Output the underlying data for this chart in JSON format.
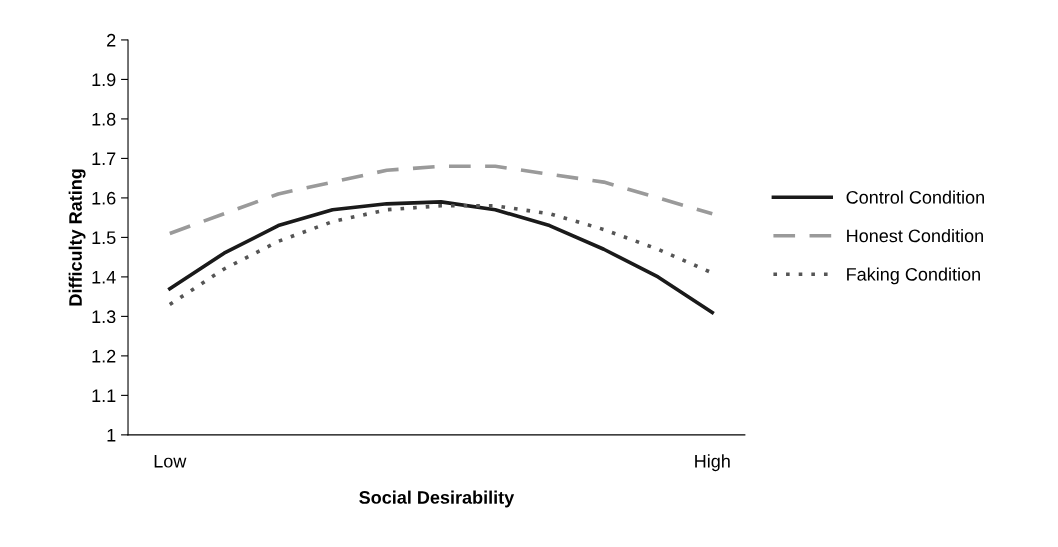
{
  "chart_data": {
    "type": "line",
    "xlabel": "Social Desirability",
    "ylabel": "Difficulty Rating",
    "categories": [
      "Low",
      null,
      null,
      null,
      null,
      null,
      null,
      null,
      null,
      null,
      "High"
    ],
    "series": [
      {
        "name": "Control Condition",
        "color": "#1a1a1a",
        "line_style": "solid",
        "values": [
          1.37,
          1.46,
          1.53,
          1.57,
          1.585,
          1.59,
          1.57,
          1.53,
          1.47,
          1.4,
          1.31
        ]
      },
      {
        "name": "Honest Condition",
        "color": "#9a9a9a",
        "line_style": "dashed",
        "values": [
          1.51,
          1.56,
          1.61,
          1.64,
          1.67,
          1.68,
          1.68,
          1.66,
          1.64,
          1.6,
          1.56
        ]
      },
      {
        "name": "Faking Condition",
        "color": "#555555",
        "line_style": "dotted",
        "values": [
          1.33,
          1.42,
          1.49,
          1.54,
          1.57,
          1.58,
          1.58,
          1.56,
          1.52,
          1.47,
          1.41
        ]
      }
    ],
    "ylim": [
      1,
      2
    ],
    "yticks": [
      1,
      {
        "value": 1.1,
        "label": "1.1"
      },
      {
        "value": 1.2,
        "label": "1.2"
      },
      {
        "value": 1.3,
        "label": "1.3"
      },
      {
        "value": 1.4,
        "label": "1.4"
      },
      {
        "value": 1.5,
        "label": "1.5"
      },
      {
        "value": 1.6,
        "label": "1.6"
      },
      {
        "value": 1.7,
        "label": "1.7"
      },
      {
        "value": 1.8,
        "label": "1.8"
      },
      {
        "value": 1.9,
        "label": "1.9"
      },
      2
    ],
    "grid": false,
    "legend": "right",
    "marker": "none"
  }
}
